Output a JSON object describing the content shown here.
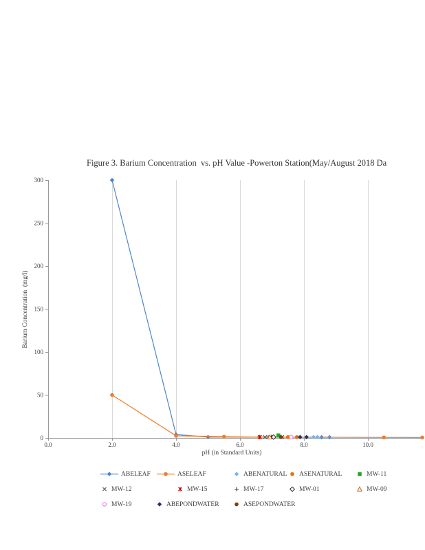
{
  "chart_data": {
    "type": "scatter",
    "title": "Figure 3. Barium Concentration  vs. pH Value -Powerton Station(May/August 2018 Da",
    "xlabel": "pH (in Standard Units)",
    "ylabel": "Barium Concentration  (mg/l)",
    "xlim": [
      0,
      11.7
    ],
    "ylim": [
      0,
      300
    ],
    "grid": "vertical-only",
    "legend_position": "bottom",
    "x_ticks": [
      0,
      2,
      4,
      6,
      8,
      10
    ],
    "x_tick_labels": [
      "0.0",
      "2.0",
      "4.0",
      "6.0",
      "8.0",
      "10.0"
    ],
    "y_ticks": [
      0,
      50,
      100,
      150,
      200,
      250,
      300
    ],
    "y_tick_labels": [
      "0",
      "50",
      "100",
      "150",
      "200",
      "250",
      "300"
    ],
    "series": [
      {
        "name": "ABELEAF",
        "color": "#4e86c8",
        "marker": "diamond",
        "line": true,
        "points": [
          [
            2.0,
            300
          ],
          [
            4.0,
            4
          ],
          [
            5.0,
            1
          ],
          [
            8.55,
            0.8
          ],
          [
            8.8,
            0.8
          ]
        ]
      },
      {
        "name": "ASELEAF",
        "color": "#ed7d31",
        "marker": "circle",
        "line": true,
        "points": [
          [
            2.0,
            50
          ],
          [
            4.0,
            2.5
          ],
          [
            5.5,
            1.5
          ],
          [
            6.6,
            1
          ],
          [
            10.5,
            0.6
          ],
          [
            11.7,
            0.5
          ]
        ]
      },
      {
        "name": "ABENATURAL",
        "color": "#7fb2e5",
        "marker": "diamond",
        "line": false,
        "points": [
          [
            8.3,
            1
          ],
          [
            8.42,
            1
          ]
        ]
      },
      {
        "name": "ASENATURAL",
        "color": "#e8700a",
        "marker": "circle",
        "line": false,
        "points": [
          [
            7.5,
            1
          ],
          [
            7.78,
            1
          ]
        ]
      },
      {
        "name": "MW-11",
        "color": "#2aa12e",
        "marker": "square",
        "line": false,
        "points": [
          [
            7.2,
            3
          ]
        ]
      },
      {
        "name": "MW-12",
        "color": "#595959",
        "marker": "x",
        "line": false,
        "points": [
          [
            6.78,
            1
          ],
          [
            7.32,
            1
          ]
        ]
      },
      {
        "name": "MW-15",
        "color": "#c00000",
        "marker": "star",
        "line": false,
        "points": [
          [
            6.62,
            1
          ],
          [
            6.98,
            1
          ]
        ]
      },
      {
        "name": "MW-17",
        "color": "#404040",
        "marker": "plus",
        "line": false,
        "points": [
          [
            6.88,
            1
          ]
        ]
      },
      {
        "name": "MW-01",
        "color": "#262626",
        "marker": "diamond-open",
        "line": false,
        "points": [
          [
            7.05,
            1
          ]
        ]
      },
      {
        "name": "MW-09",
        "color": "#c55a11",
        "marker": "triangle-open",
        "line": false,
        "points": [
          [
            6.93,
            1
          ]
        ]
      },
      {
        "name": "MW-19",
        "color": "#e07ce0",
        "marker": "circle-open",
        "line": false,
        "points": [
          [
            7.6,
            1
          ]
        ]
      },
      {
        "name": "ABEPONDWATER",
        "color": "#1f3864",
        "marker": "diamond",
        "line": false,
        "points": [
          [
            7.88,
            1
          ],
          [
            8.08,
            1
          ]
        ]
      },
      {
        "name": "ASEPONDWATER",
        "color": "#843c0c",
        "marker": "circle",
        "line": false,
        "points": [
          [
            7.28,
            1
          ]
        ]
      }
    ],
    "legend_rows": [
      [
        "ABELEAF",
        "ASELEAF",
        "ABENATURAL",
        "ASENATURAL",
        "MW-11"
      ],
      [
        "MW-12",
        "MW-15",
        "MW-17",
        "MW-01",
        "MW-09"
      ],
      [
        "MW-19",
        "ABEPONDWATER",
        "ASEPONDWATER"
      ]
    ]
  }
}
